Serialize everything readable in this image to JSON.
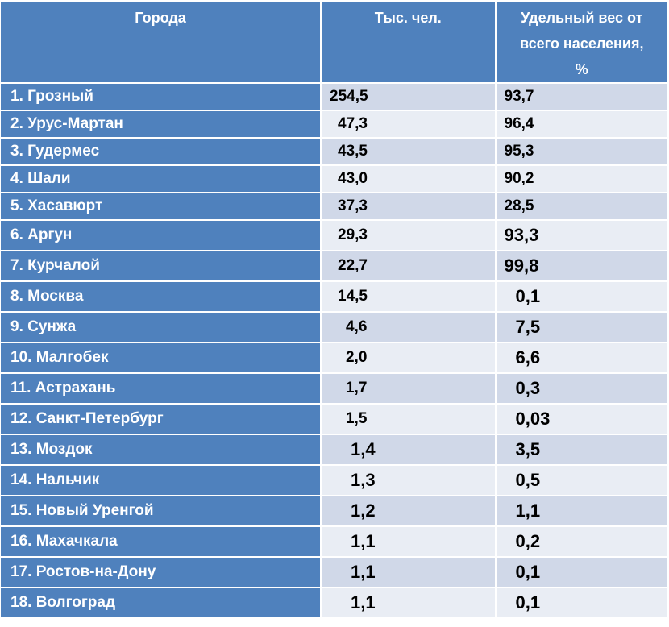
{
  "table": {
    "headers": {
      "city": "Города",
      "population": "Тыс. чел.",
      "share": [
        "Удельный вес от",
        "всего населения,",
        "%"
      ]
    },
    "rows": [
      {
        "city": "1. Грозный",
        "population": "254,5",
        "share": "93,7"
      },
      {
        "city": "2. Урус-Мартан",
        "population": "47,3",
        "share": "96,4"
      },
      {
        "city": "3. Гудермес",
        "population": "43,5",
        "share": "95,3"
      },
      {
        "city": "4. Шали",
        "population": "43,0",
        "share": "90,2"
      },
      {
        "city": "5. Хасавюрт",
        "population": "37,3",
        "share": "28,5"
      },
      {
        "city": "6. Аргун",
        "population": "29,3",
        "share": "93,3"
      },
      {
        "city": "7. Курчалой",
        "population": "22,7",
        "share": "99,8"
      },
      {
        "city": "8. Москва",
        "population": "14,5",
        "share": "0,1"
      },
      {
        "city": "9. Сунжа",
        "population": "4,6",
        "share": "7,5"
      },
      {
        "city": "10. Малгобек",
        "population": "2,0",
        "share": "6,6"
      },
      {
        "city": "11. Астрахань",
        "population": "1,7",
        "share": "0,3"
      },
      {
        "city": "12. Санкт-Петербург",
        "population": "1,5",
        "share": "0,03"
      },
      {
        "city": "13. Моздок",
        "population": "1,4",
        "share": "3,5"
      },
      {
        "city": "14. Нальчик",
        "population": "1,3",
        "share": "0,5"
      },
      {
        "city": "15. Новый Уренгой",
        "population": "1,2",
        "share": "1,1"
      },
      {
        "city": "16. Махачкала",
        "population": "1,1",
        "share": "0,2"
      },
      {
        "city": "17. Ростов-на-Дону",
        "population": "1,1",
        "share": "0,1"
      },
      {
        "city": "18. Волгоград",
        "population": "1,1",
        "share": "0,1"
      }
    ]
  }
}
